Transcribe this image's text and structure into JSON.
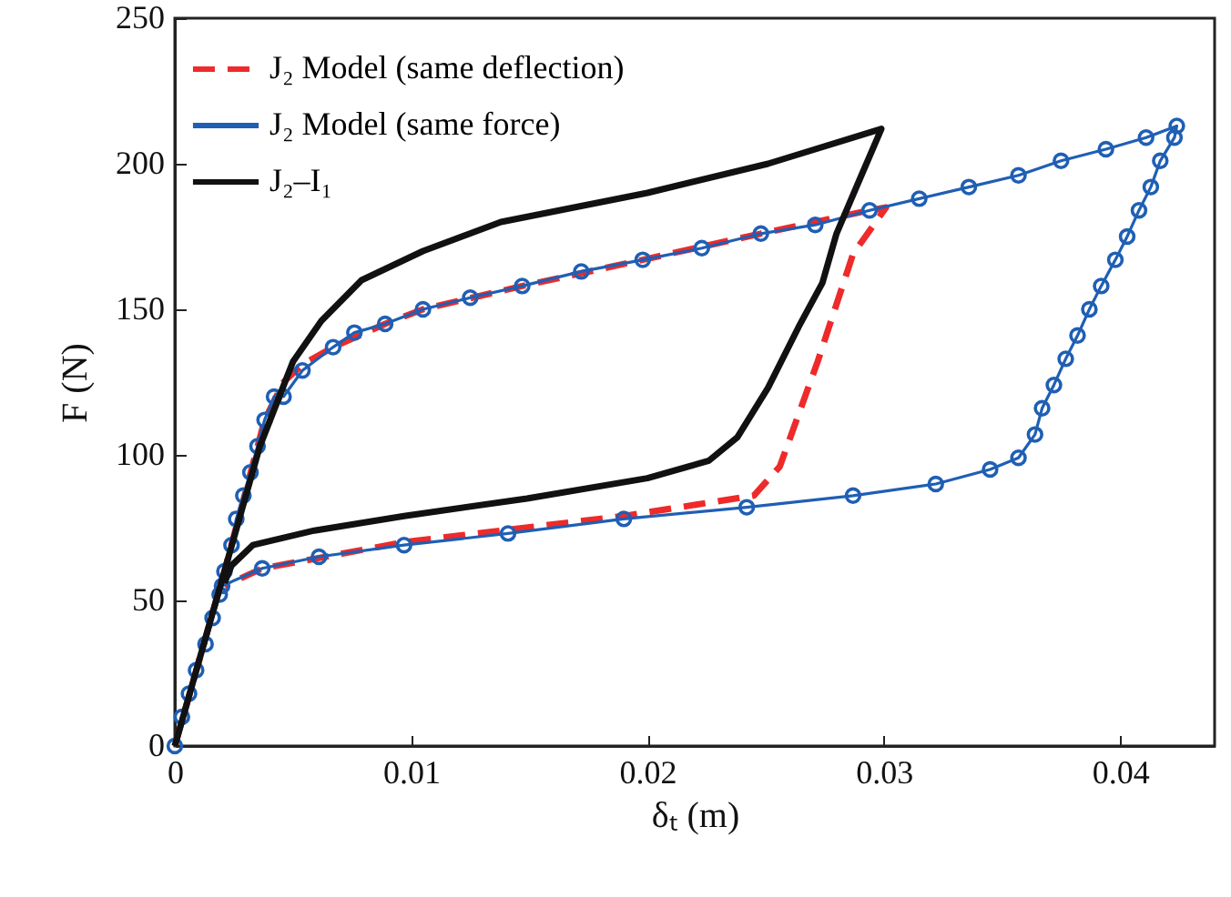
{
  "chart_data": {
    "type": "line",
    "xlabel": "δₜ (m)",
    "ylabel": "F (N)",
    "xlim": [
      0,
      0.044
    ],
    "ylim": [
      0,
      250
    ],
    "xticks": [
      0,
      0.01,
      0.02,
      0.03,
      0.04
    ],
    "yticks": [
      0,
      50,
      100,
      150,
      200,
      250
    ],
    "grid": false,
    "legend": "top left",
    "series": [
      {
        "name": "J₂ Model (same deflection)",
        "color": "#ee2a2a",
        "line_style": "dashed",
        "marker": "none",
        "x": [
          0,
          0.0021,
          0.0038,
          0.0046,
          0.0054,
          0.0067,
          0.0089,
          0.0105,
          0.0147,
          0.0198,
          0.0248,
          0.0294,
          0.0301,
          0.0287,
          0.0272,
          0.0256,
          0.0245,
          0.019,
          0.0097,
          0.0037,
          0.0021
        ],
        "values": [
          0,
          60,
          112,
          125,
          131,
          137,
          145,
          150,
          158,
          167,
          176,
          184,
          185,
          169,
          132,
          96,
          86,
          79,
          70,
          61,
          55
        ]
      },
      {
        "name": "J₂ Model (same force)",
        "color": "#1f5fb4",
        "line_style": "solid",
        "marker": "circle",
        "x": [
          0,
          0.0003,
          0.0006,
          0.0009,
          0.0013,
          0.0016,
          0.0019,
          0.0021,
          0.0024,
          0.0026,
          0.0029,
          0.0032,
          0.0035,
          0.0038,
          0.0042,
          0.0046,
          0.0054,
          0.0067,
          0.0076,
          0.0089,
          0.0105,
          0.0125,
          0.0147,
          0.0172,
          0.0198,
          0.0223,
          0.0248,
          0.0271,
          0.0294,
          0.0315,
          0.0336,
          0.0357,
          0.0375,
          0.0394,
          0.0411,
          0.0424,
          0.0423,
          0.0417,
          0.0413,
          0.0408,
          0.0403,
          0.0398,
          0.0392,
          0.0387,
          0.0382,
          0.0377,
          0.0372,
          0.0367,
          0.0364,
          0.0357,
          0.0345,
          0.0322,
          0.0287,
          0.0242,
          0.019,
          0.0141,
          0.0097,
          0.0061,
          0.0037,
          0.002
        ],
        "values": [
          0,
          10,
          18,
          26,
          35,
          44,
          52,
          60,
          69,
          78,
          86,
          94,
          103,
          112,
          120,
          120,
          129,
          137,
          142,
          145,
          150,
          154,
          158,
          163,
          167,
          171,
          176,
          179,
          184,
          188,
          192,
          196,
          201,
          205,
          209,
          213,
          209,
          201,
          192,
          184,
          175,
          167,
          158,
          150,
          141,
          133,
          124,
          116,
          107,
          99,
          95,
          90,
          86,
          82,
          78,
          73,
          69,
          65,
          61,
          55
        ]
      },
      {
        "name": "J₂–I₁",
        "color": "#111111",
        "line_style": "solid",
        "marker": "none",
        "x": [
          0,
          0.0021,
          0.0036,
          0.005,
          0.0062,
          0.0079,
          0.0105,
          0.0138,
          0.02,
          0.0251,
          0.0299,
          0.029,
          0.028,
          0.0274,
          0.0264,
          0.0251,
          0.0238,
          0.0226,
          0.02,
          0.0149,
          0.0097,
          0.0059,
          0.0033,
          0.0024,
          0.0021
        ],
        "values": [
          0,
          60,
          103,
          132,
          146,
          160,
          170,
          180,
          190,
          200,
          212,
          195,
          176,
          159,
          144,
          123,
          106,
          98,
          92,
          85,
          79,
          74,
          69,
          62,
          56
        ]
      }
    ]
  }
}
